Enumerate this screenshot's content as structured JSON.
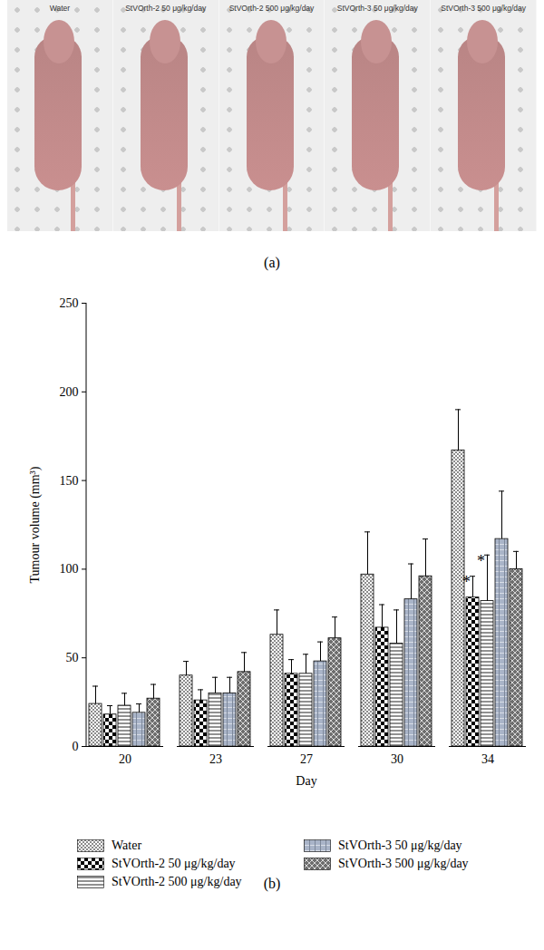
{
  "panel_a": {
    "label": "(a)",
    "captions": [
      "Water",
      "StVOrth-2 50 μg/kg/day",
      "StVOrth-2 500 μg/kg/day",
      "StVOrth-3 50 μg/kg/day",
      "StVOrth-3 500 μg/kg/day"
    ]
  },
  "panel_b_label": "(b)",
  "chart_data": {
    "type": "bar",
    "xlabel": "Day",
    "ylabel": "Tumour volume (mm³)",
    "categories": [
      "20",
      "23",
      "27",
      "30",
      "34"
    ],
    "series": [
      {
        "name": "Water",
        "color": "#8c8c8c",
        "values": [
          24,
          40,
          63,
          97,
          167
        ],
        "errors": [
          10,
          8,
          14,
          24,
          23
        ]
      },
      {
        "name": "StVOrth-2 50 μg/kg/day",
        "color": "#000000",
        "values": [
          18,
          26,
          41,
          67,
          84
        ],
        "errors": [
          5,
          6,
          8,
          13,
          12
        ]
      },
      {
        "name": "StVOrth-2 500 μg/kg/day",
        "color": "#555555",
        "values": [
          23,
          30,
          41,
          58,
          82
        ],
        "errors": [
          7,
          9,
          11,
          19,
          26
        ]
      },
      {
        "name": "StVOrth-3 50 μg/kg/day",
        "color": "#a9b4c8",
        "values": [
          19,
          30,
          48,
          83,
          117
        ],
        "errors": [
          5,
          9,
          11,
          20,
          27
        ]
      },
      {
        "name": "StVOrth-3 500 μg/kg/day",
        "color": "#6e6e6e",
        "values": [
          27,
          42,
          61,
          96,
          100
        ],
        "errors": [
          8,
          11,
          12,
          21,
          10
        ]
      }
    ],
    "annotations": [
      {
        "category": "34",
        "series": "StVOrth-2 50 μg/kg/day",
        "text": "*"
      },
      {
        "category": "34",
        "series": "StVOrth-2 500 μg/kg/day",
        "text": "*"
      }
    ],
    "ylim": [
      0,
      250
    ],
    "yticks": [
      0,
      50,
      100,
      150,
      200,
      250
    ],
    "grid": false,
    "legend": "bottom"
  }
}
